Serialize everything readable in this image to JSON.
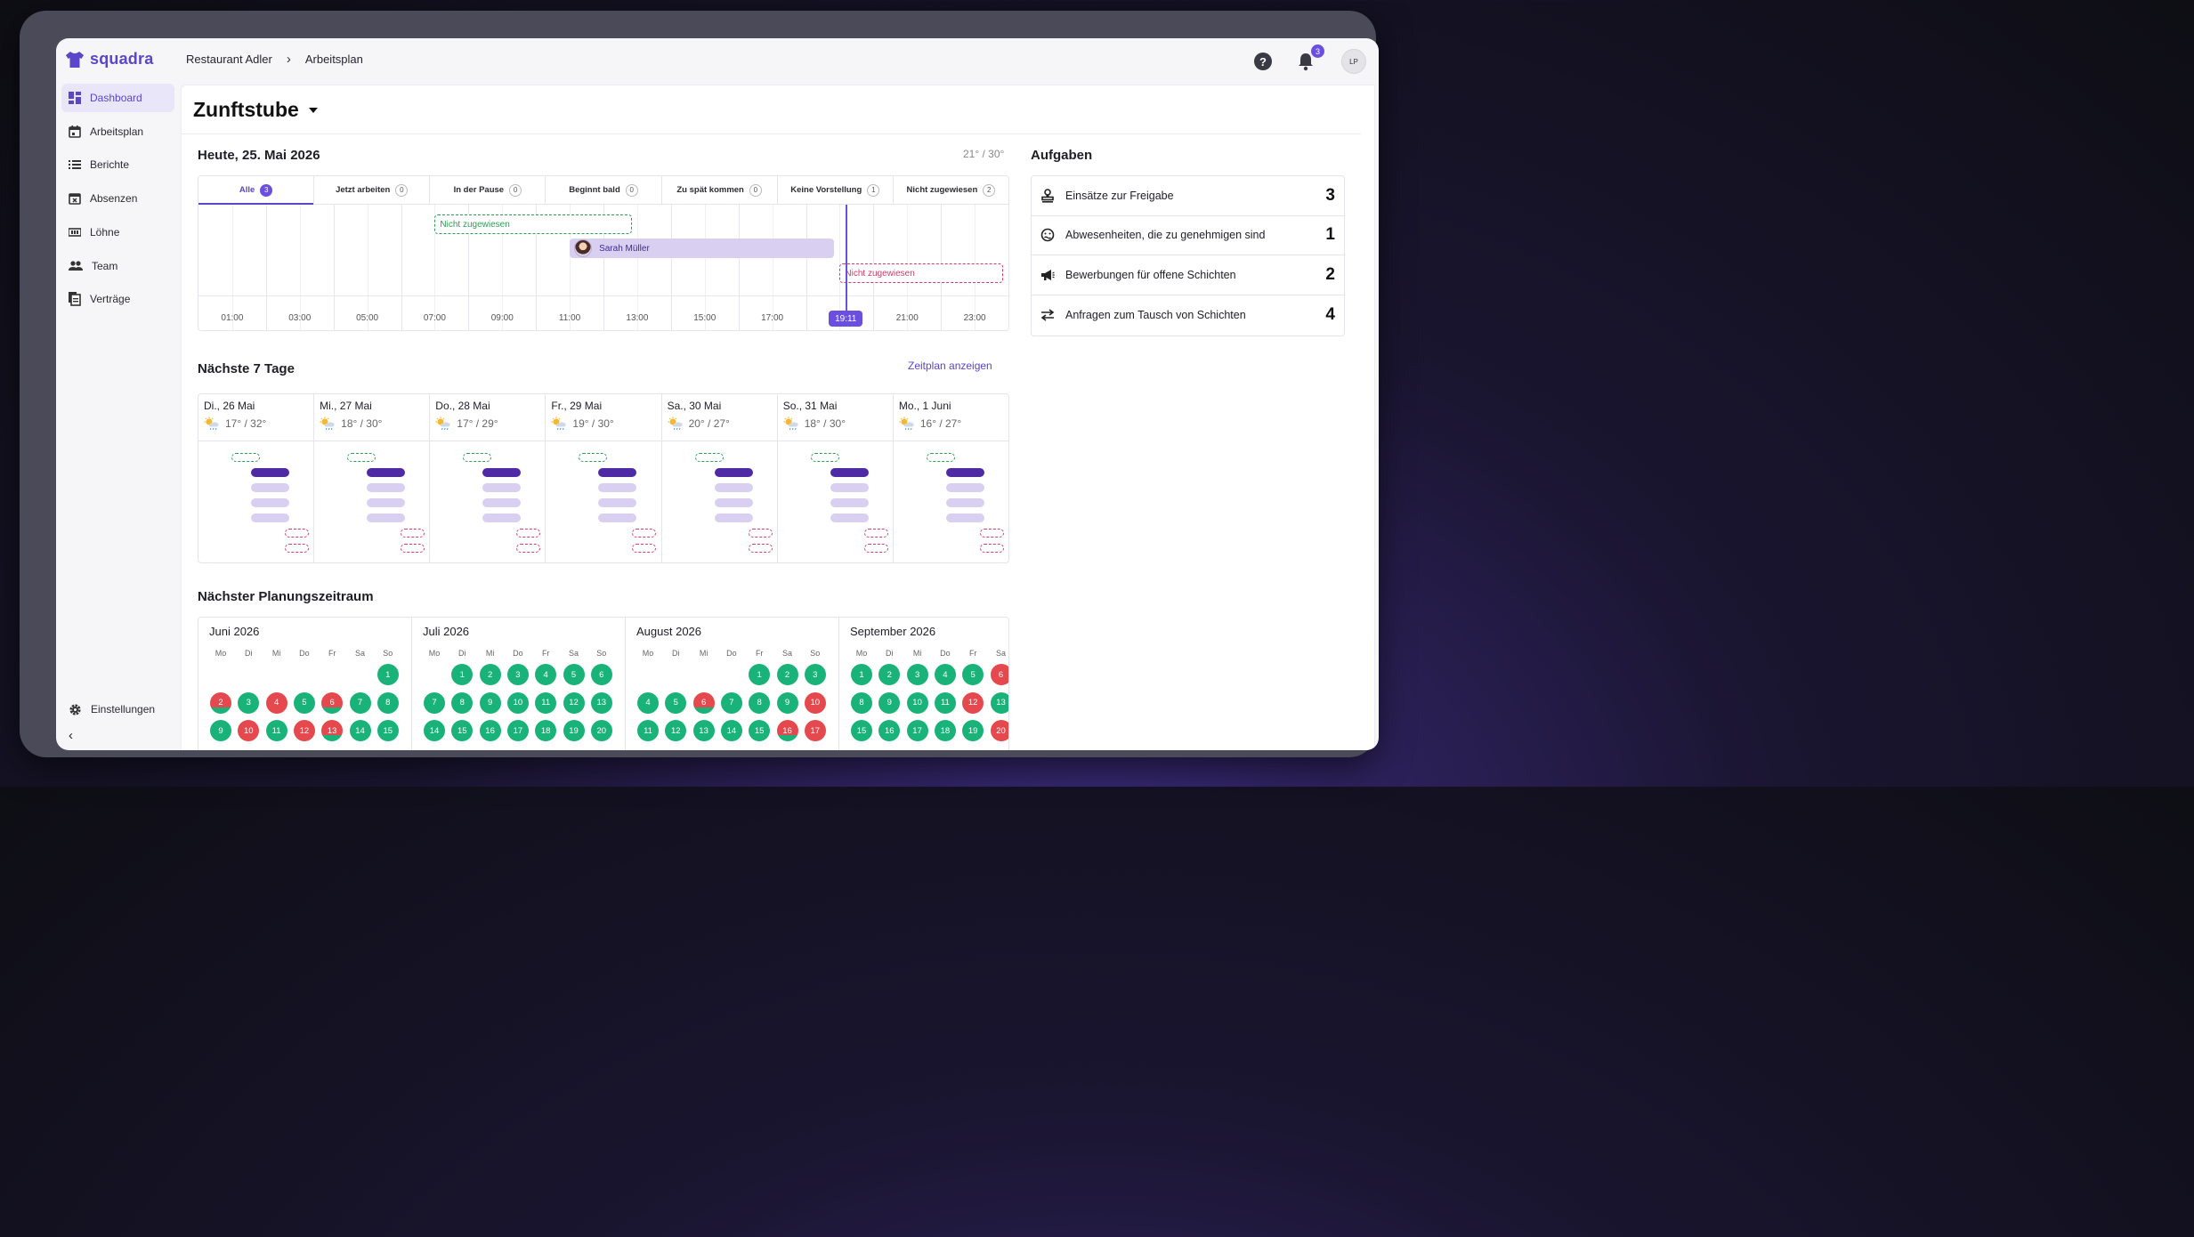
{
  "app": {
    "name": "squadra"
  },
  "breadcrumb": [
    "Restaurant Adler",
    "Arbeitsplan"
  ],
  "header": {
    "notifications": "3",
    "user_initials": "LP"
  },
  "sidebar": {
    "items": [
      {
        "label": "Dashboard",
        "icon": "dashboard-icon",
        "active": true
      },
      {
        "label": "Arbeitsplan",
        "icon": "calendar-icon"
      },
      {
        "label": "Berichte",
        "icon": "list-icon"
      },
      {
        "label": "Absenzen",
        "icon": "calendar-x-icon"
      },
      {
        "label": "Löhne",
        "icon": "money-icon"
      },
      {
        "label": "Team",
        "icon": "people-icon"
      },
      {
        "label": "Verträge",
        "icon": "document-icon"
      }
    ],
    "settings_label": "Einstellungen"
  },
  "page": {
    "title": "Zunftstube"
  },
  "today": {
    "title": "Heute, 25. Mai 2026",
    "temperature": "21° / 30°",
    "tabs": [
      {
        "label": "Alle",
        "count": "3",
        "active": true
      },
      {
        "label": "Jetzt arbeiten",
        "count": "0"
      },
      {
        "label": "In der Pause",
        "count": "0"
      },
      {
        "label": "Beginnt bald",
        "count": "0"
      },
      {
        "label": "Zu spät kommen",
        "count": "0"
      },
      {
        "label": "Keine Vorstellung",
        "count": "1"
      },
      {
        "label": "Nicht zugewiesen",
        "count": "2"
      }
    ],
    "hours": [
      "01:00",
      "03:00",
      "05:00",
      "07:00",
      "09:00",
      "11:00",
      "13:00",
      "15:00",
      "17:00",
      "19:00",
      "21:00",
      "23:00"
    ],
    "now": "19:11",
    "now_hour": 19.18,
    "shifts": [
      {
        "label": "Nicht zugewiesen",
        "start": 7.0,
        "end": 13.0,
        "kind": "unassigned-green"
      },
      {
        "label": "Sarah Müller",
        "start": 11.0,
        "end": 19.0,
        "kind": "assigned"
      },
      {
        "label": "Nicht zugewiesen",
        "start": 19.0,
        "end": 24.0,
        "kind": "unassigned-red"
      }
    ]
  },
  "week": {
    "title": "Nächste 7 Tage",
    "link": "Zeitplan anzeigen",
    "days": [
      {
        "label": "Di., 26 Mai",
        "temp": "17° / 32°"
      },
      {
        "label": "Mi., 27 Mai",
        "temp": "18° / 30°"
      },
      {
        "label": "Do., 28 Mai",
        "temp": "17° / 29°"
      },
      {
        "label": "Fr., 29 Mai",
        "temp": "19° / 30°"
      },
      {
        "label": "Sa., 30 Mai",
        "temp": "20° / 27°"
      },
      {
        "label": "So., 31 Mai",
        "temp": "18° / 30°"
      },
      {
        "label": "Mo., 1 Juni",
        "temp": "16° / 27°"
      }
    ]
  },
  "tasks": {
    "title": "Aufgaben",
    "items": [
      {
        "label": "Einsätze zur Freigabe",
        "count": "3",
        "icon": "stamp-icon"
      },
      {
        "label": "Abwesenheiten, die zu genehmigen sind",
        "count": "1",
        "icon": "sick-face-icon"
      },
      {
        "label": "Bewerbungen für offene Schichten",
        "count": "2",
        "icon": "megaphone-icon"
      },
      {
        "label": "Anfragen zum Tausch von Schichten",
        "count": "4",
        "icon": "swap-arrows-icon"
      }
    ]
  },
  "planning": {
    "title": "Nächster Planungszeitraum",
    "weekdays": [
      "Mo",
      "Di",
      "Mi",
      "Do",
      "Fr",
      "Sa",
      "So"
    ],
    "colors": {
      "green": "#19b37a",
      "red": "#e5484d"
    },
    "months": [
      {
        "title": "Juni 2026",
        "offset": 6,
        "days": [
          {
            "d": "1",
            "s": "g"
          },
          {
            "d": "2",
            "s": "rg"
          },
          {
            "d": "3",
            "s": "g"
          },
          {
            "d": "4",
            "s": "r"
          },
          {
            "d": "5",
            "s": "g"
          },
          {
            "d": "6",
            "s": "rg"
          },
          {
            "d": "7",
            "s": "g"
          },
          {
            "d": "8",
            "s": "g"
          },
          {
            "d": "9",
            "s": "g"
          },
          {
            "d": "10",
            "s": "r"
          },
          {
            "d": "11",
            "s": "g"
          },
          {
            "d": "12",
            "s": "r"
          },
          {
            "d": "13",
            "s": "rg"
          },
          {
            "d": "14",
            "s": "g"
          },
          {
            "d": "15",
            "s": "g"
          }
        ]
      },
      {
        "title": "Juli 2026",
        "offset": 1,
        "days": [
          {
            "d": "1",
            "s": "g"
          },
          {
            "d": "2",
            "s": "g"
          },
          {
            "d": "3",
            "s": "g"
          },
          {
            "d": "4",
            "s": "g"
          },
          {
            "d": "5",
            "s": "g"
          },
          {
            "d": "6",
            "s": "g"
          },
          {
            "d": "7",
            "s": "g"
          },
          {
            "d": "8",
            "s": "g"
          },
          {
            "d": "9",
            "s": "g"
          },
          {
            "d": "10",
            "s": "g"
          },
          {
            "d": "11",
            "s": "g"
          },
          {
            "d": "12",
            "s": "g"
          },
          {
            "d": "13",
            "s": "g"
          },
          {
            "d": "14",
            "s": "g"
          },
          {
            "d": "15",
            "s": "g"
          },
          {
            "d": "16",
            "s": "g"
          },
          {
            "d": "17",
            "s": "g"
          },
          {
            "d": "18",
            "s": "g"
          },
          {
            "d": "19",
            "s": "g"
          },
          {
            "d": "20",
            "s": "g"
          }
        ]
      },
      {
        "title": "August 2026",
        "offset": 4,
        "days": [
          {
            "d": "1",
            "s": "g"
          },
          {
            "d": "2",
            "s": "g"
          },
          {
            "d": "3",
            "s": "g"
          },
          {
            "d": "4",
            "s": "g"
          },
          {
            "d": "5",
            "s": "g"
          },
          {
            "d": "6",
            "s": "rg"
          },
          {
            "d": "7",
            "s": "g"
          },
          {
            "d": "8",
            "s": "g"
          },
          {
            "d": "9",
            "s": "g"
          },
          {
            "d": "10",
            "s": "r"
          },
          {
            "d": "11",
            "s": "g"
          },
          {
            "d": "12",
            "s": "g"
          },
          {
            "d": "13",
            "s": "g"
          },
          {
            "d": "14",
            "s": "g"
          },
          {
            "d": "15",
            "s": "g"
          },
          {
            "d": "16",
            "s": "rg"
          },
          {
            "d": "17",
            "s": "r"
          }
        ]
      },
      {
        "title": "September 2026",
        "offset": 0,
        "days": [
          {
            "d": "1",
            "s": "g"
          },
          {
            "d": "2",
            "s": "g"
          },
          {
            "d": "3",
            "s": "g"
          },
          {
            "d": "4",
            "s": "g"
          },
          {
            "d": "5",
            "s": "g"
          },
          {
            "d": "6",
            "s": "r"
          },
          {
            "d": "8",
            "s": "g"
          },
          {
            "d": "9",
            "s": "g"
          },
          {
            "d": "10",
            "s": "g"
          },
          {
            "d": "11",
            "s": "g"
          },
          {
            "d": "12",
            "s": "r"
          },
          {
            "d": "13",
            "s": "g"
          },
          {
            "d": "15",
            "s": "g"
          },
          {
            "d": "16",
            "s": "g"
          },
          {
            "d": "17",
            "s": "g"
          },
          {
            "d": "18",
            "s": "g"
          },
          {
            "d": "19",
            "s": "g"
          },
          {
            "d": "20",
            "s": "r"
          }
        ]
      }
    ]
  }
}
